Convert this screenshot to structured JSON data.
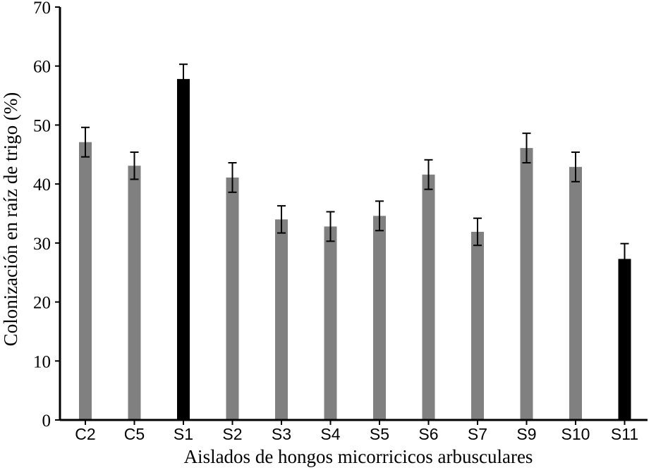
{
  "chart_data": {
    "type": "bar",
    "title": "",
    "xlabel": "Aislados de hongos micorricicos arbusculares",
    "ylabel": "Colonización en raíz de trigo (%)",
    "ylim": [
      0,
      70
    ],
    "yticks": [
      0,
      10,
      20,
      30,
      40,
      50,
      60,
      70
    ],
    "grid": false,
    "legend": "none",
    "categories": [
      "C2",
      "C5",
      "S1",
      "S2",
      "S3",
      "S4",
      "S5",
      "S6",
      "S7",
      "S9",
      "S10",
      "S11"
    ],
    "values": [
      47.1,
      43.1,
      57.8,
      41.1,
      34.0,
      32.8,
      34.6,
      41.6,
      31.9,
      46.1,
      42.9,
      27.3
    ],
    "error": [
      2.5,
      2.3,
      2.5,
      2.5,
      2.3,
      2.5,
      2.5,
      2.5,
      2.3,
      2.5,
      2.5,
      2.6
    ],
    "colors": [
      "#808080",
      "#808080",
      "#000000",
      "#808080",
      "#808080",
      "#808080",
      "#808080",
      "#808080",
      "#808080",
      "#808080",
      "#808080",
      "#000000"
    ]
  }
}
